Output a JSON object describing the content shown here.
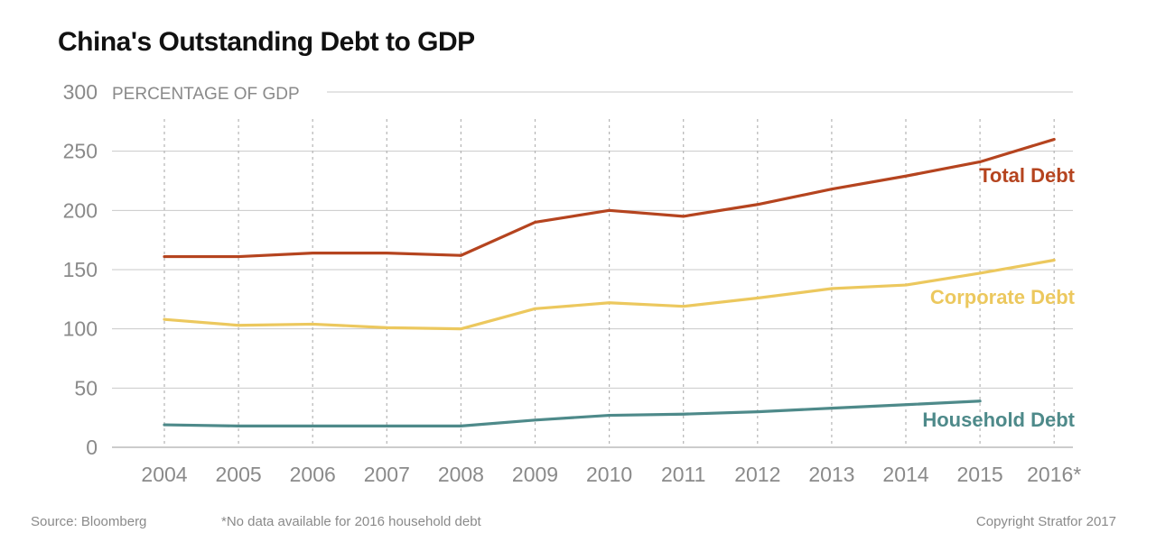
{
  "title": "China's Outstanding Debt to GDP",
  "source": "Source: Bloomberg",
  "footnote": "*No data available for 2016 household debt",
  "copyright": "Copyright Stratfor 2017",
  "chart_data": {
    "type": "line",
    "title": "China's Outstanding Debt to GDP",
    "ylabel": "PERCENTAGE OF GDP",
    "xlabel": "",
    "ylim": [
      0,
      300
    ],
    "yticks": [
      0,
      50,
      100,
      150,
      200,
      250,
      300
    ],
    "categories": [
      "2004",
      "2005",
      "2006",
      "2007",
      "2008",
      "2009",
      "2010",
      "2011",
      "2012",
      "2013",
      "2014",
      "2015",
      "2016*"
    ],
    "grid": "horizontal solid, vertical dotted",
    "legend": "inline labels at right end of lines",
    "series": [
      {
        "name": "Total Debt",
        "color": "#b5441f",
        "values": [
          161,
          161,
          164,
          164,
          162,
          190,
          200,
          195,
          205,
          218,
          229,
          241,
          260
        ]
      },
      {
        "name": "Corporate Debt",
        "color": "#ecc85e",
        "values": [
          108,
          103,
          104,
          101,
          100,
          117,
          122,
          119,
          126,
          134,
          137,
          147,
          158
        ]
      },
      {
        "name": "Household Debt",
        "color": "#4e8a8a",
        "values": [
          19,
          18,
          18,
          18,
          18,
          23,
          27,
          28,
          30,
          33,
          36,
          39,
          null
        ]
      }
    ]
  }
}
